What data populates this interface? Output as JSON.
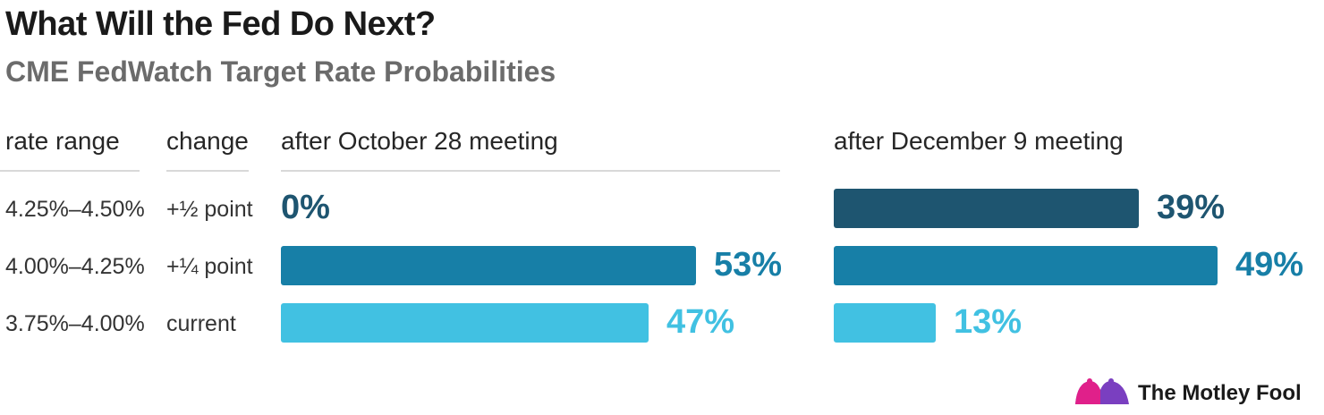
{
  "title": "What Will the Fed Do Next?",
  "subtitle": "CME FedWatch Target Rate Probabilities",
  "brand": "The Motley Fool",
  "headers": {
    "rate_range": "rate range",
    "change": "change",
    "panel1": "after October 28 meeting",
    "panel2": "after December 9 meeting"
  },
  "colors": {
    "hike_half": "#1e5570",
    "hike_quarter": "#177fa7",
    "current": "#41c1e2",
    "text": "#1a1a1a",
    "subtitle": "#6b6b6b"
  },
  "chart_data": {
    "type": "bar",
    "orientation": "horizontal",
    "title": "What Will the Fed Do Next?",
    "subtitle": "CME FedWatch Target Rate Probabilities",
    "categories": [
      "4.25%–4.50%",
      "4.00%–4.25%",
      "3.75%–4.00%"
    ],
    "change_labels": [
      "+½ point",
      "+¼ point",
      "current"
    ],
    "unit": "%",
    "xlim": [
      0,
      53
    ],
    "series": [
      {
        "name": "after October 28 meeting",
        "values": [
          0,
          53,
          47
        ],
        "labels": [
          "0%",
          "53%",
          "47%"
        ]
      },
      {
        "name": "after December 9 meeting",
        "values": [
          39,
          49,
          13
        ],
        "labels": [
          "39%",
          "49%",
          "13%"
        ]
      }
    ]
  }
}
